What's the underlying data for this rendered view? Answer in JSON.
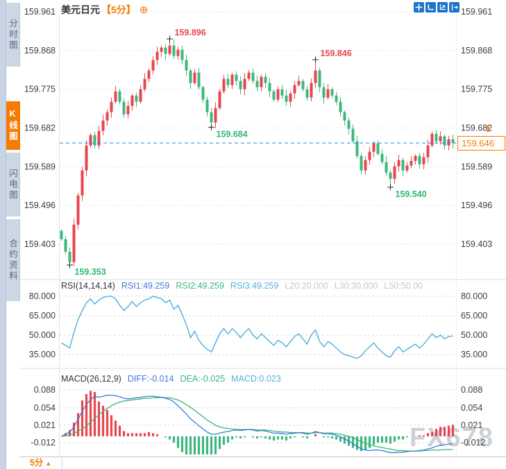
{
  "sidebar": {
    "tabs": [
      {
        "label": "分时图",
        "active": false
      },
      {
        "label": "K线图",
        "active": true
      },
      {
        "label": "闪电图",
        "active": false
      },
      {
        "label": "合约资料",
        "active": false
      }
    ]
  },
  "header": {
    "title": "美元日元",
    "period_tag": "【5分】",
    "toolbar_icons": [
      "pan-crosshair-icon",
      "axis-range-icon",
      "axis-zoom-icon",
      "shift-right-icon"
    ]
  },
  "icons": {
    "plus_glyph": "⊕",
    "settings_glyph": "☀",
    "arrow_up": "▲"
  },
  "price_label": {
    "text": "159.646"
  },
  "watermark": "FX678",
  "footer": {
    "period": "5分",
    "arrow": "▲"
  },
  "chart_data": [
    {
      "type": "candlestick",
      "title": "美元日元 5分",
      "axis_ticks": [
        159.961,
        159.868,
        159.775,
        159.682,
        159.589,
        159.496,
        159.403
      ],
      "axis_labels": [
        "159.961",
        "159.868",
        "159.775",
        "159.682",
        "159.589",
        "159.496",
        "159.403"
      ],
      "ylim": [
        159.34,
        159.99
      ],
      "current_price": 159.646,
      "current_price_color": "#1e86e8",
      "up_color": "#e8464f",
      "down_color": "#3eb77f",
      "first_open": 159.435,
      "closes": [
        159.415,
        159.385,
        159.36,
        159.45,
        159.52,
        159.58,
        159.64,
        159.665,
        159.64,
        159.675,
        159.7,
        159.72,
        159.745,
        159.77,
        159.745,
        159.715,
        159.735,
        159.76,
        159.745,
        159.775,
        159.8,
        159.82,
        159.845,
        159.865,
        159.875,
        159.86,
        159.88,
        159.855,
        159.87,
        159.845,
        159.82,
        159.79,
        159.815,
        159.78,
        159.75,
        159.72,
        159.695,
        159.73,
        159.77,
        159.8,
        159.785,
        159.81,
        159.795,
        159.775,
        159.8,
        159.815,
        159.795,
        159.78,
        159.805,
        159.79,
        159.77,
        159.75,
        159.775,
        159.76,
        159.745,
        159.765,
        159.785,
        159.795,
        159.775,
        159.755,
        159.79,
        159.82,
        159.78,
        159.755,
        159.775,
        159.76,
        159.745,
        159.72,
        159.7,
        159.68,
        159.65,
        159.615,
        159.58,
        159.605,
        159.625,
        159.645,
        159.62,
        159.6,
        159.575,
        159.56,
        159.59,
        159.605,
        159.58,
        159.592,
        159.603,
        159.615,
        159.595,
        159.612,
        159.64,
        159.668,
        159.65,
        159.662,
        159.64,
        159.655,
        159.646
      ],
      "extremes": {
        "2": {
          "low": 159.353
        },
        "26": {
          "high": 159.896
        },
        "36": {
          "low": 159.684
        },
        "61": {
          "high": 159.846
        },
        "79": {
          "low": 159.54
        }
      },
      "annotations": [
        {
          "text": "159.896",
          "candle": 26,
          "price": 159.896,
          "side": "high",
          "color": "#e8464f"
        },
        {
          "text": "159.846",
          "candle": 61,
          "price": 159.846,
          "side": "high",
          "color": "#e8464f"
        },
        {
          "text": "159.684",
          "candle": 36,
          "price": 159.684,
          "side": "low",
          "color": "#2eb872"
        },
        {
          "text": "159.540",
          "candle": 79,
          "price": 159.54,
          "side": "low",
          "color": "#2eb872"
        },
        {
          "text": "159.353",
          "candle": 2,
          "price": 159.353,
          "side": "low",
          "color": "#2eb872"
        }
      ]
    },
    {
      "type": "line",
      "name": "RSI",
      "params_label": "RSI(14,14,14)",
      "legend": [
        {
          "text": "RSI1:49.259",
          "color": "#4976d6"
        },
        {
          "text": "RSI2:49.259",
          "color": "#3eb57a"
        },
        {
          "text": "RSI3:49.259",
          "color": "#4fb3d9"
        },
        {
          "text": "L20:20.000",
          "color": "#c4c8cc"
        },
        {
          "text": "L30:30.000",
          "color": "#c4c8cc"
        },
        {
          "text": "L50:50.00",
          "color": "#c4c8cc"
        }
      ],
      "axis_ticks": [
        80,
        65,
        50,
        35
      ],
      "axis_labels": [
        "80.000",
        "65.000",
        "50.000",
        "35.000"
      ],
      "line_color": "#3fa9dc",
      "values": [
        44,
        42,
        40,
        52,
        62,
        69,
        75,
        78,
        74,
        77,
        79,
        80,
        80,
        78,
        73,
        69,
        72,
        76,
        72,
        75,
        77,
        78,
        80,
        79,
        78,
        75,
        77,
        70,
        73,
        66,
        58,
        48,
        53,
        46,
        42,
        39,
        37,
        44,
        51,
        55,
        51,
        55,
        52,
        48,
        52,
        55,
        50,
        47,
        51,
        48,
        45,
        42,
        46,
        44,
        41,
        45,
        49,
        51,
        47,
        43,
        50,
        54,
        45,
        41,
        45,
        43,
        40,
        37,
        35,
        34,
        33,
        32,
        34,
        38,
        41,
        44,
        40,
        37,
        34,
        33,
        38,
        41,
        37,
        39,
        41,
        43,
        40,
        43,
        47,
        51,
        48,
        50,
        47,
        49,
        49.259
      ]
    },
    {
      "type": "macd",
      "name": "MACD",
      "params_label": "MACD(26,12,9)",
      "legend": [
        {
          "text": "DIFF:-0.014",
          "color": "#4976d6"
        },
        {
          "text": "DEA:-0.025",
          "color": "#3eb57a"
        },
        {
          "text": "MACD:0.023",
          "color": "#4fb3d9"
        }
      ],
      "axis_ticks": [
        0.088,
        0.054,
        0.021,
        -0.012
      ],
      "axis_labels": [
        "0.088",
        "0.054",
        "0.021",
        "-0.012"
      ],
      "diff_color": "#2f7ed8",
      "dea_color": "#3cb371",
      "hist_up_color": "#e8464f",
      "hist_down_color": "#3eb77f",
      "hist_rule": "2*(diff-dea)",
      "diff": [
        0.0,
        0.004,
        0.008,
        0.018,
        0.032,
        0.048,
        0.06,
        0.07,
        0.076,
        0.074,
        0.076,
        0.078,
        0.078,
        0.077,
        0.075,
        0.072,
        0.071,
        0.072,
        0.073,
        0.074,
        0.075,
        0.076,
        0.076,
        0.075,
        0.074,
        0.072,
        0.07,
        0.065,
        0.058,
        0.05,
        0.042,
        0.033,
        0.027,
        0.02,
        0.014,
        0.008,
        0.004,
        0.004,
        0.006,
        0.008,
        0.009,
        0.011,
        0.012,
        0.011,
        0.012,
        0.013,
        0.012,
        0.01,
        0.011,
        0.01,
        0.008,
        0.006,
        0.006,
        0.005,
        0.004,
        0.005,
        0.006,
        0.007,
        0.006,
        0.004,
        0.006,
        0.009,
        0.007,
        0.005,
        0.005,
        0.004,
        0.002,
        -0.001,
        -0.005,
        -0.009,
        -0.014,
        -0.019,
        -0.024,
        -0.026,
        -0.027,
        -0.026,
        -0.026,
        -0.027,
        -0.029,
        -0.031,
        -0.031,
        -0.03,
        -0.03,
        -0.029,
        -0.028,
        -0.028,
        -0.027,
        -0.026,
        -0.024,
        -0.022,
        -0.019,
        -0.017,
        -0.016,
        -0.015,
        -0.014
      ],
      "dea": [
        0.0,
        0.001,
        0.002,
        0.005,
        0.01,
        0.014,
        0.02,
        0.027,
        0.034,
        0.041,
        0.047,
        0.053,
        0.058,
        0.062,
        0.065,
        0.067,
        0.068,
        0.069,
        0.07,
        0.071,
        0.072,
        0.072,
        0.073,
        0.073,
        0.074,
        0.073,
        0.073,
        0.071,
        0.069,
        0.065,
        0.06,
        0.055,
        0.049,
        0.043,
        0.037,
        0.031,
        0.026,
        0.021,
        0.018,
        0.016,
        0.015,
        0.014,
        0.013,
        0.013,
        0.013,
        0.013,
        0.013,
        0.012,
        0.012,
        0.012,
        0.011,
        0.01,
        0.009,
        0.008,
        0.008,
        0.007,
        0.007,
        0.007,
        0.007,
        0.006,
        0.006,
        0.007,
        0.007,
        0.006,
        0.006,
        0.006,
        0.005,
        0.004,
        0.002,
        0.0,
        -0.003,
        -0.006,
        -0.01,
        -0.013,
        -0.016,
        -0.018,
        -0.02,
        -0.021,
        -0.023,
        -0.024,
        -0.026,
        -0.027,
        -0.027,
        -0.028,
        -0.028,
        -0.028,
        -0.028,
        -0.027,
        -0.027,
        -0.026,
        -0.026,
        -0.026,
        -0.025,
        -0.025,
        -0.025
      ]
    }
  ]
}
